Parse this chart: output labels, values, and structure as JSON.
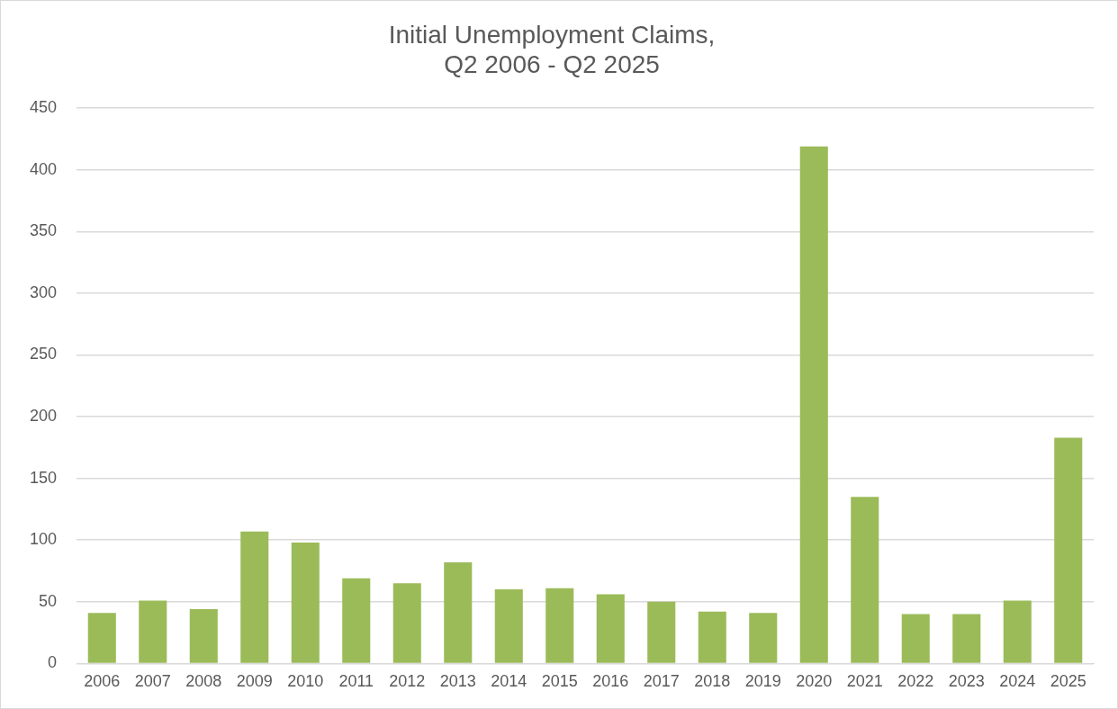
{
  "chart_data": {
    "type": "bar",
    "title": "Initial Unemployment Claims,\nQ2 2006 - Q2 2025",
    "categories": [
      "2006",
      "2007",
      "2008",
      "2009",
      "2010",
      "2011",
      "2012",
      "2013",
      "2014",
      "2015",
      "2016",
      "2017",
      "2018",
      "2019",
      "2020",
      "2021",
      "2022",
      "2023",
      "2024",
      "2025"
    ],
    "values": [
      41,
      51,
      44,
      107,
      98,
      69,
      65,
      82,
      60,
      61,
      56,
      50,
      42,
      41,
      419,
      135,
      40,
      40,
      51,
      183
    ],
    "color": "#9bbb59",
    "ylim": [
      0,
      450
    ],
    "yticks": [
      0,
      50,
      100,
      150,
      200,
      250,
      300,
      350,
      400,
      450
    ],
    "grid": "y"
  }
}
